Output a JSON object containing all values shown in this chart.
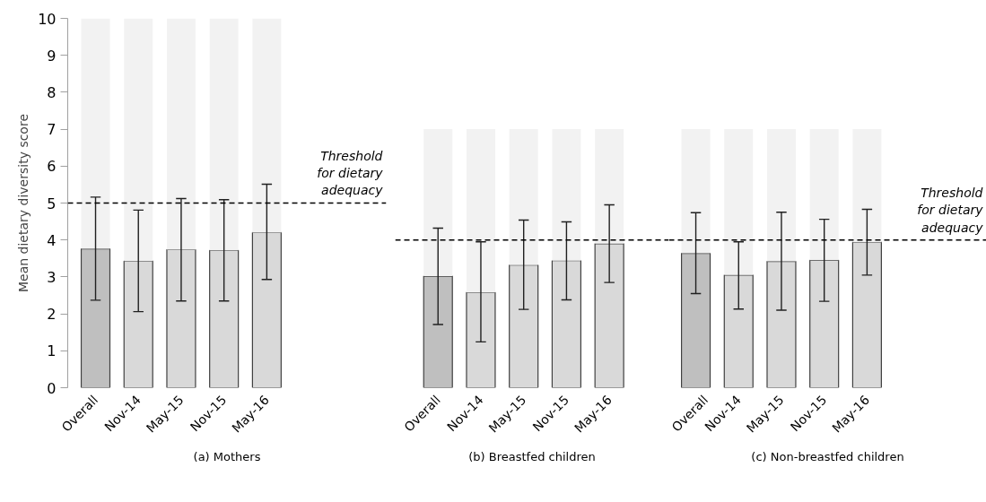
{
  "chart_data": [
    {
      "type": "bar",
      "stacked": true,
      "title": "(a) Mothers",
      "ylabel": "Mean dietary diversity score",
      "categories": [
        "Overall",
        "Nov-14",
        "May-15",
        "Nov-15",
        "May-16"
      ],
      "ylim": [
        0,
        10
      ],
      "yticks": [
        0,
        1,
        2,
        3,
        4,
        5,
        6,
        7,
        8,
        9,
        10
      ],
      "grid": false,
      "series": [
        {
          "colors": [
            "#bfbfbf",
            "#d9d9d9",
            "#d9d9d9",
            "#d9d9d9",
            "#d9d9d9"
          ],
          "values": [
            3.76,
            3.43,
            3.74,
            3.72,
            4.2
          ],
          "errors": [
            [
              2.37,
              5.16
            ],
            [
              2.06,
              4.81
            ],
            [
              2.35,
              5.12
            ],
            [
              2.35,
              5.09
            ],
            [
              2.93,
              5.51
            ]
          ]
        },
        {
          "color": "#f2f2f2",
          "values": [
            6.24,
            6.57,
            6.26,
            6.28,
            5.8
          ]
        }
      ],
      "ref_lines": [
        {
          "axis": "y",
          "value": 5,
          "label": "Threshold for dietary adequacy",
          "line_style": "dashed",
          "color": "#000000"
        }
      ]
    },
    {
      "type": "bar",
      "stacked": true,
      "title": "(b) Breastfed children",
      "categories": [
        "Overall",
        "Nov-14",
        "May-15",
        "Nov-15",
        "May-16"
      ],
      "ylim": [
        0,
        10
      ],
      "tick_labels": "x",
      "grid": false,
      "series": [
        {
          "colors": [
            "#bfbfbf",
            "#d9d9d9",
            "#d9d9d9",
            "#d9d9d9",
            "#d9d9d9"
          ],
          "values": [
            3.02,
            2.58,
            3.32,
            3.44,
            3.9
          ],
          "errors": [
            [
              1.71,
              4.32
            ],
            [
              1.24,
              3.95
            ],
            [
              2.12,
              4.54
            ],
            [
              2.38,
              4.49
            ],
            [
              2.85,
              4.95
            ]
          ]
        },
        {
          "color": "#f2f2f2",
          "values": [
            3.98,
            4.42,
            3.68,
            3.56,
            3.1
          ]
        }
      ],
      "ref_lines": [
        {
          "axis": "y",
          "value": 4,
          "line_style": "dashed",
          "color": "#000000"
        }
      ]
    },
    {
      "type": "bar",
      "stacked": true,
      "title": "(c) Non-breastfed children",
      "categories": [
        "Overall",
        "Nov-14",
        "May-15",
        "Nov-15",
        "May-16"
      ],
      "ylim": [
        0,
        10
      ],
      "tick_labels": "x",
      "grid": false,
      "series": [
        {
          "colors": [
            "#bfbfbf",
            "#d9d9d9",
            "#d9d9d9",
            "#d9d9d9",
            "#d9d9d9"
          ],
          "values": [
            3.64,
            3.05,
            3.42,
            3.45,
            3.94
          ],
          "errors": [
            [
              2.55,
              4.74
            ],
            [
              2.13,
              3.95
            ],
            [
              2.1,
              4.75
            ],
            [
              2.34,
              4.56
            ],
            [
              3.05,
              4.83
            ]
          ]
        },
        {
          "color": "#f2f2f2",
          "values": [
            3.36,
            3.95,
            3.58,
            3.55,
            3.06
          ]
        }
      ],
      "ref_lines": [
        {
          "axis": "y",
          "value": 4,
          "label": "Threshold for dietary adequacy",
          "line_style": "dashed",
          "color": "#000000"
        }
      ]
    }
  ]
}
